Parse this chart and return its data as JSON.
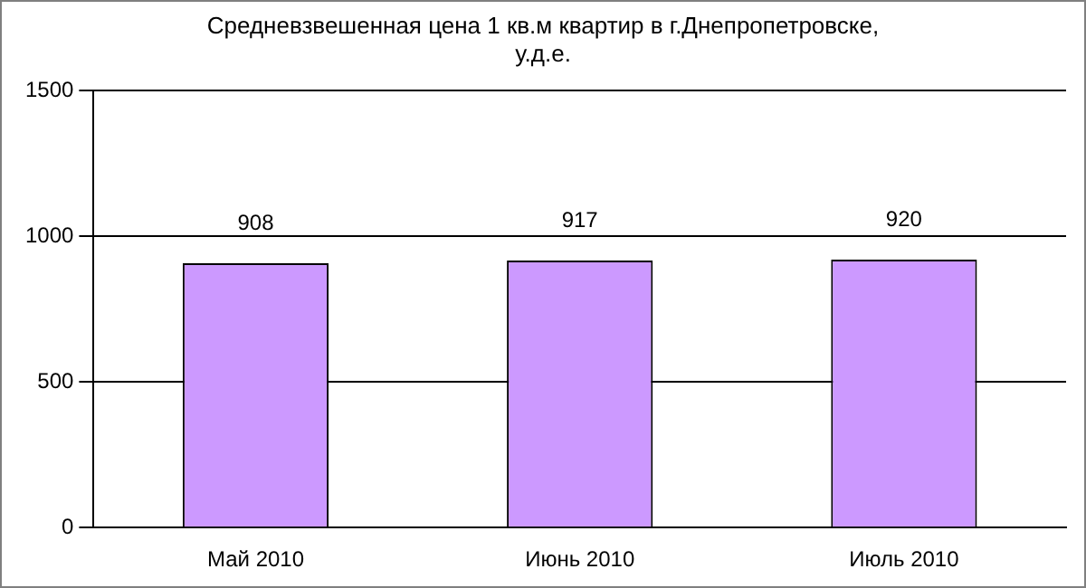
{
  "chart_data": {
    "type": "bar",
    "title": "Средневзвешенная цена 1 кв.м квартир в г.Днепропетровске,\nу.д.е.",
    "categories": [
      "Май 2010",
      "Июнь 2010",
      "Июль 2010"
    ],
    "values": [
      908,
      917,
      920
    ],
    "color": "#cc99ff",
    "ylim": [
      0,
      1500
    ],
    "yticks": [
      0,
      500,
      1000,
      1500
    ],
    "grid": "y",
    "data_labels": true,
    "legend": false
  }
}
